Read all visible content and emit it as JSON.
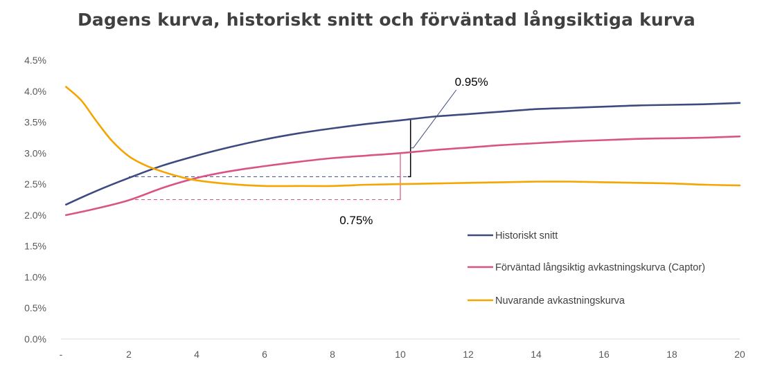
{
  "chart_data": {
    "type": "line",
    "title": "Dagens kurva, historiskt snitt och förväntad långsiktiga kurva",
    "xlabel": "",
    "ylabel": "",
    "x_ticks": [
      "-",
      "2",
      "4",
      "6",
      "8",
      "10",
      "12",
      "14",
      "16",
      "18",
      "20"
    ],
    "y_ticks": [
      "0.0%",
      "0.5%",
      "1.0%",
      "1.5%",
      "2.0%",
      "2.5%",
      "3.0%",
      "3.5%",
      "4.0%",
      "4.5%"
    ],
    "xlim": [
      0,
      20
    ],
    "ylim": [
      0,
      4.5
    ],
    "grid": false,
    "legend_position": "lower-right",
    "series": [
      {
        "name": "Historiskt snitt",
        "color": "#3d4a7f",
        "x": [
          0.15,
          1,
          2,
          3,
          4,
          5,
          6,
          7,
          8,
          9,
          10,
          11,
          12,
          13,
          14,
          15,
          16,
          17,
          18,
          19,
          20
        ],
        "y": [
          2.17,
          2.38,
          2.6,
          2.8,
          2.96,
          3.1,
          3.22,
          3.32,
          3.4,
          3.47,
          3.53,
          3.59,
          3.63,
          3.67,
          3.71,
          3.73,
          3.75,
          3.77,
          3.78,
          3.79,
          3.81
        ]
      },
      {
        "name": "Förväntad långsiktig avkastningskurva (Captor)",
        "color": "#d95385",
        "x": [
          0.15,
          1,
          2,
          3,
          4,
          5,
          6,
          7,
          8,
          9,
          10,
          11,
          12,
          13,
          14,
          15,
          16,
          17,
          18,
          19,
          20
        ],
        "y": [
          2.0,
          2.1,
          2.24,
          2.44,
          2.6,
          2.71,
          2.79,
          2.86,
          2.92,
          2.96,
          3.0,
          3.05,
          3.09,
          3.13,
          3.16,
          3.19,
          3.21,
          3.23,
          3.24,
          3.25,
          3.27
        ]
      },
      {
        "name": "Nuvarande avkastningskurva",
        "color": "#f5a400",
        "x": [
          0.15,
          0.6,
          1,
          1.5,
          2,
          2.5,
          3,
          3.5,
          4,
          5,
          6,
          7,
          8,
          9,
          10,
          11,
          12,
          13,
          14,
          15,
          16,
          17,
          18,
          19,
          20
        ],
        "y": [
          4.07,
          3.85,
          3.55,
          3.2,
          2.95,
          2.8,
          2.7,
          2.62,
          2.56,
          2.5,
          2.47,
          2.47,
          2.47,
          2.49,
          2.5,
          2.51,
          2.52,
          2.53,
          2.54,
          2.54,
          2.53,
          2.52,
          2.51,
          2.49,
          2.48
        ]
      }
    ],
    "annotations": [
      {
        "text": "0.95%",
        "series_pair": [
          "Historiskt snitt",
          "Nuvarande avkastningskurva"
        ],
        "x": 10.3,
        "y_from": 2.62,
        "y_to": 3.55,
        "baseline_from_x": 2,
        "color": "#000000",
        "dash_color": "#3d4a7f"
      },
      {
        "text": "0.75%",
        "series_pair": [
          "Förväntad långsiktig avkastningskurva (Captor)",
          "Nuvarande avkastningskurva"
        ],
        "x": 10.0,
        "y_from": 2.25,
        "y_to": 3.0,
        "baseline_from_x": 2,
        "color": "#d95385",
        "dash_color": "#d95385"
      }
    ]
  }
}
